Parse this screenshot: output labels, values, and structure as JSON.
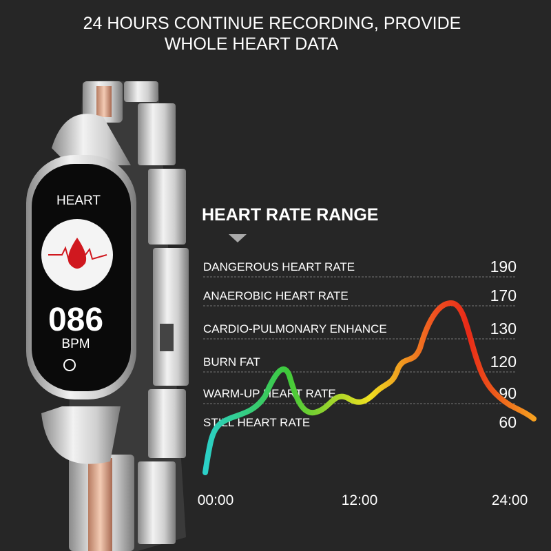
{
  "header": {
    "line1": "24 HOURS CONTINUE RECORDING, PROVIDE",
    "line2": "WHOLE HEART DATA"
  },
  "watch": {
    "mode": "HEART",
    "reading": "086",
    "unit": "BPM"
  },
  "chart": {
    "title": "HEART RATE RANGE",
    "zones": [
      {
        "label": "DANGEROUS HEART RATE",
        "value": "190"
      },
      {
        "label": "ANAEROBIC HEART RATE",
        "value": "170"
      },
      {
        "label": "CARDIO-PULMONARY ENHANCE",
        "value": "130"
      },
      {
        "label": "BURN FAT",
        "value": "120"
      },
      {
        "label": "WARM-UP HEART RATE",
        "value": "90"
      },
      {
        "label": "STILL HEART RATE",
        "value": "60"
      }
    ],
    "times": [
      "00:00",
      "12:00",
      "24:00"
    ]
  }
}
